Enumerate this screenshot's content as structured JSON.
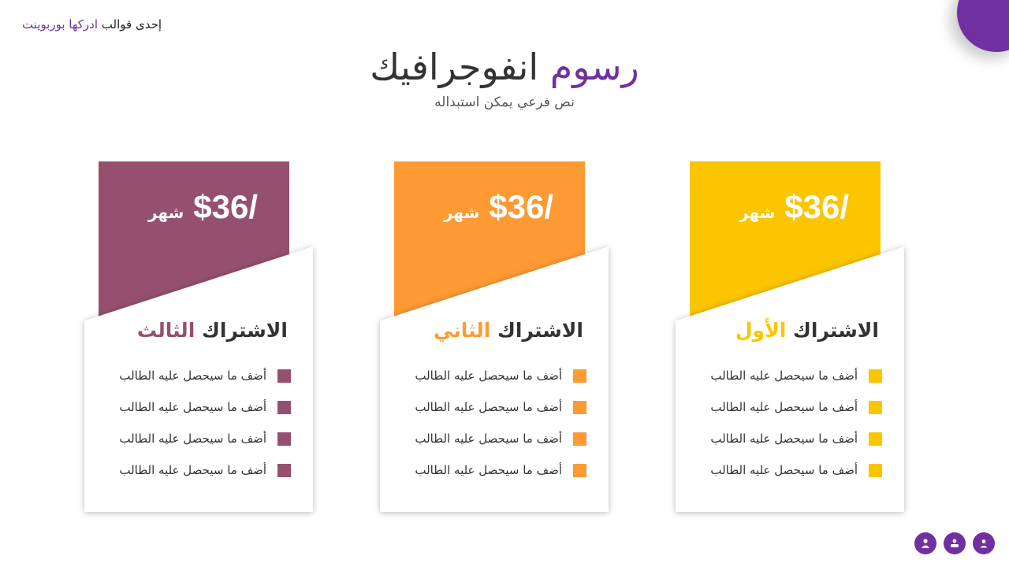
{
  "brand": {
    "prefix": "إحدى قوالب",
    "accent": "ادركها بوربوينت"
  },
  "title": {
    "main": "انفوجرافيك",
    "accent": "رسوم"
  },
  "subtitle": "نص فرعي يمكن استبداله",
  "colors": {
    "purple": "#7030a0",
    "plan1": "#fbc500",
    "plan2": "#fd9a34",
    "plan3": "#96506f"
  },
  "plans": [
    {
      "price": "$36/",
      "unit": "شهر",
      "title_main": "الاشتراك",
      "title_accent": "الأول",
      "features": [
        "أضف ما سيحصل عليه الطالب",
        "أضف ما سيحصل عليه الطالب",
        "أضف ما سيحصل عليه الطالب",
        "أضف ما سيحصل عليه الطالب"
      ]
    },
    {
      "price": "$36/",
      "unit": "شهر",
      "title_main": "الاشتراك",
      "title_accent": "الثاني",
      "features": [
        "أضف ما سيحصل عليه الطالب",
        "أضف ما سيحصل عليه الطالب",
        "أضف ما سيحصل عليه الطالب",
        "أضف ما سيحصل عليه الطالب"
      ]
    },
    {
      "price": "$36/",
      "unit": "شهر",
      "title_main": "الاشتراك",
      "title_accent": "الثالث",
      "features": [
        "أضف ما سيحصل عليه الطالب",
        "أضف ما سيحصل عليه الطالب",
        "أضف ما سيحصل عليه الطالب",
        "أضف ما سيحصل عليه الطالب"
      ]
    }
  ],
  "footer_icons": [
    "user-icon",
    "group-icon",
    "profile-icon"
  ]
}
